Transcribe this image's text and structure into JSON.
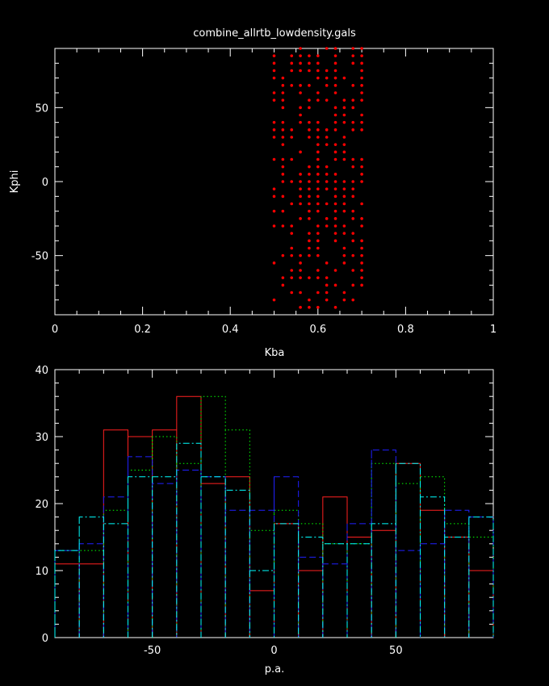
{
  "chart_data": [
    {
      "type": "scatter",
      "title": "combine_allrtb_lowdensity.gals",
      "xlabel": "Kba",
      "ylabel": "Kphi",
      "xlim": [
        0,
        1
      ],
      "ylim": [
        -90,
        90
      ],
      "xticks": [
        "0",
        "0.2",
        "0.4",
        "0.6",
        "0.8",
        "1"
      ],
      "yticks": [
        "-50",
        "0",
        "50"
      ],
      "colors": {
        "points": "#ff0000",
        "axes": "#ffffff",
        "background": "#000000"
      },
      "x_columns": [
        0.5,
        0.52,
        0.54,
        0.56,
        0.58,
        0.6,
        0.62,
        0.64,
        0.66,
        0.68,
        0.7
      ],
      "y_step": 5,
      "y_range": [
        -85,
        90
      ],
      "columns_fill": [
        0.45,
        0.45,
        0.55,
        0.65,
        0.7,
        0.7,
        0.7,
        0.7,
        0.7,
        0.65,
        0.55
      ]
    },
    {
      "type": "histogram",
      "xlabel": "p.a.",
      "ylabel": "",
      "xlim": [
        -90,
        90
      ],
      "ylim": [
        0,
        40
      ],
      "xticks": [
        "-50",
        "0",
        "50"
      ],
      "yticks": [
        "0",
        "10",
        "20",
        "30",
        "40"
      ],
      "bin_edges": [
        -90,
        -80,
        -70,
        -60,
        -50,
        -40,
        -30,
        -20,
        -10,
        0,
        10,
        20,
        30,
        40,
        50,
        60,
        70,
        80,
        90
      ],
      "series": [
        {
          "style": "solid",
          "color": "#ff2020",
          "values": [
            11,
            11,
            31,
            30,
            31,
            36,
            23,
            24,
            7,
            17,
            10,
            21,
            15,
            16,
            26,
            19,
            15,
            10
          ]
        },
        {
          "style": "dotted",
          "color": "#00ff00",
          "values": [
            13,
            13,
            19,
            25,
            30,
            26,
            36,
            31,
            16,
            19,
            17,
            14,
            14,
            26,
            23,
            24,
            17,
            15
          ]
        },
        {
          "style": "dashed",
          "color": "#2020ff",
          "values": [
            13,
            14,
            21,
            27,
            23,
            25,
            24,
            19,
            19,
            24,
            12,
            11,
            17,
            28,
            13,
            14,
            19,
            18
          ]
        },
        {
          "style": "dashdot",
          "color": "#00ffff",
          "values": [
            13,
            18,
            17,
            24,
            24,
            29,
            24,
            22,
            10,
            17,
            15,
            14,
            14,
            17,
            26,
            21,
            15,
            18
          ]
        }
      ]
    }
  ]
}
